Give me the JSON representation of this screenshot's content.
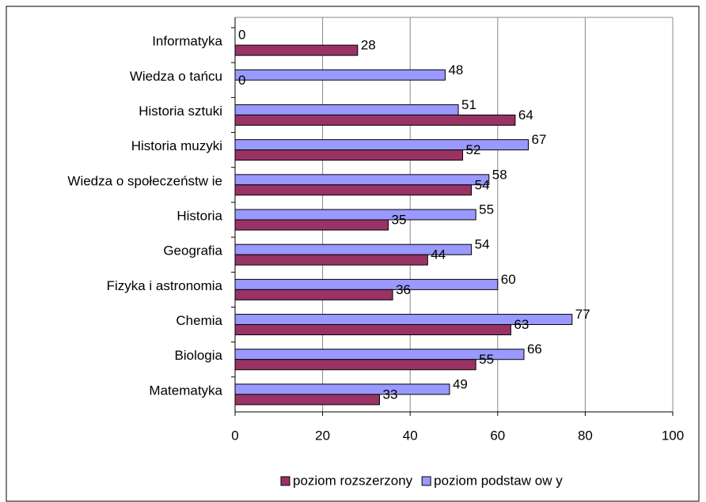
{
  "chart_data": {
    "type": "bar",
    "orientation": "horizontal",
    "categories": [
      "Informatyka",
      "Wiedza o tańcu",
      "Historia sztuki",
      "Historia  muzyki",
      "Wiedza o społeczeństw ie",
      "Historia",
      "Geografia",
      "Fizyka i astronomia",
      "Chemia",
      "Biologia",
      "Matematyka"
    ],
    "series": [
      {
        "name": "poziom rozszerzony",
        "color": "#993366",
        "values": [
          28,
          0,
          64,
          52,
          54,
          35,
          44,
          36,
          63,
          55,
          33
        ]
      },
      {
        "name": "poziom podstaw ow y",
        "color": "#9999ff",
        "values": [
          0,
          48,
          51,
          67,
          58,
          55,
          54,
          60,
          77,
          66,
          49
        ]
      }
    ],
    "xlim": [
      0,
      100
    ],
    "xticks": [
      0,
      20,
      40,
      60,
      80,
      100
    ],
    "grid": true,
    "legend": "bottom"
  }
}
